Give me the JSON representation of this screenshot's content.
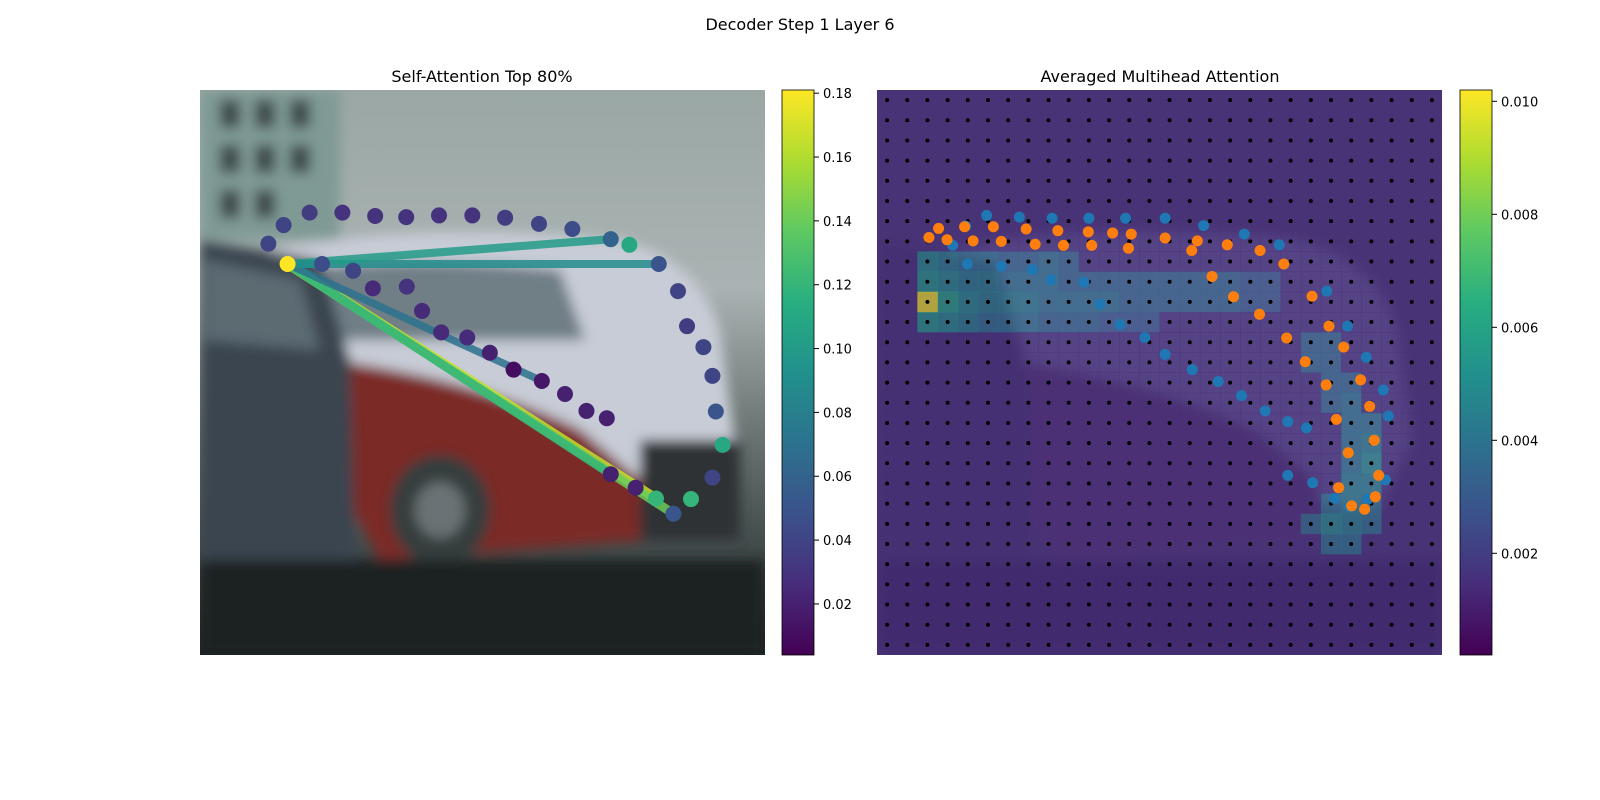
{
  "figure": {
    "suptitle": "Decoder Step 1 Layer 6"
  },
  "chart_data": [
    {
      "type": "scatter",
      "title": "Self-Attention Top 80%",
      "background": "blurred photo of parked cars",
      "colormap": "viridis",
      "colorbar": {
        "min": 0.004,
        "max": 0.181,
        "ticks": [
          0.02,
          0.04,
          0.06,
          0.08,
          0.1,
          0.12,
          0.14,
          0.16,
          0.18
        ],
        "tick_labels": [
          "0.02",
          "0.04",
          "0.06",
          "0.08",
          "0.10",
          "0.12",
          "0.14",
          "0.16",
          "0.18"
        ]
      },
      "query_index": 2,
      "x_range": [
        0,
        1
      ],
      "y_range": [
        0,
        1
      ],
      "points": [
        {
          "x": 0.121,
          "y": 0.728,
          "v": 0.04
        },
        {
          "x": 0.148,
          "y": 0.761,
          "v": 0.04
        },
        {
          "x": 0.155,
          "y": 0.692,
          "v": 0.181
        },
        {
          "x": 0.194,
          "y": 0.783,
          "v": 0.035
        },
        {
          "x": 0.216,
          "y": 0.692,
          "v": 0.045
        },
        {
          "x": 0.252,
          "y": 0.783,
          "v": 0.03
        },
        {
          "x": 0.271,
          "y": 0.68,
          "v": 0.04
        },
        {
          "x": 0.306,
          "y": 0.649,
          "v": 0.025
        },
        {
          "x": 0.31,
          "y": 0.777,
          "v": 0.03
        },
        {
          "x": 0.365,
          "y": 0.775,
          "v": 0.03
        },
        {
          "x": 0.366,
          "y": 0.652,
          "v": 0.03
        },
        {
          "x": 0.393,
          "y": 0.609,
          "v": 0.025
        },
        {
          "x": 0.423,
          "y": 0.778,
          "v": 0.03
        },
        {
          "x": 0.427,
          "y": 0.571,
          "v": 0.025
        },
        {
          "x": 0.473,
          "y": 0.562,
          "v": 0.025
        },
        {
          "x": 0.482,
          "y": 0.778,
          "v": 0.03
        },
        {
          "x": 0.513,
          "y": 0.535,
          "v": 0.02
        },
        {
          "x": 0.54,
          "y": 0.774,
          "v": 0.035
        },
        {
          "x": 0.555,
          "y": 0.505,
          "v": 0.01
        },
        {
          "x": 0.605,
          "y": 0.485,
          "v": 0.015
        },
        {
          "x": 0.6,
          "y": 0.763,
          "v": 0.04
        },
        {
          "x": 0.646,
          "y": 0.462,
          "v": 0.02
        },
        {
          "x": 0.659,
          "y": 0.754,
          "v": 0.045
        },
        {
          "x": 0.684,
          "y": 0.432,
          "v": 0.02
        },
        {
          "x": 0.72,
          "y": 0.419,
          "v": 0.02
        },
        {
          "x": 0.727,
          "y": 0.736,
          "v": 0.06
        },
        {
          "x": 0.76,
          "y": 0.726,
          "v": 0.11
        },
        {
          "x": 0.727,
          "y": 0.32,
          "v": 0.02
        },
        {
          "x": 0.771,
          "y": 0.296,
          "v": 0.02
        },
        {
          "x": 0.807,
          "y": 0.277,
          "v": 0.12
        },
        {
          "x": 0.812,
          "y": 0.692,
          "v": 0.05
        },
        {
          "x": 0.838,
          "y": 0.25,
          "v": 0.05
        },
        {
          "x": 0.869,
          "y": 0.276,
          "v": 0.12
        },
        {
          "x": 0.846,
          "y": 0.644,
          "v": 0.04
        },
        {
          "x": 0.862,
          "y": 0.582,
          "v": 0.035
        },
        {
          "x": 0.891,
          "y": 0.545,
          "v": 0.04
        },
        {
          "x": 0.907,
          "y": 0.494,
          "v": 0.04
        },
        {
          "x": 0.913,
          "y": 0.431,
          "v": 0.05
        },
        {
          "x": 0.925,
          "y": 0.372,
          "v": 0.11
        },
        {
          "x": 0.907,
          "y": 0.314,
          "v": 0.04
        }
      ],
      "attention_links": [
        {
          "to": 29,
          "v": 0.165
        },
        {
          "to": 31,
          "v": 0.14
        },
        {
          "to": 27,
          "v": 0.12
        },
        {
          "to": 30,
          "v": 0.09
        },
        {
          "to": 19,
          "v": 0.07
        },
        {
          "to": 25,
          "v": 0.1
        },
        {
          "to": 4,
          "v": 0.09
        }
      ]
    },
    {
      "type": "heatmap",
      "title": "Averaged Multihead Attention",
      "background": "blurred photo of parked cars with attention heatmap overlay",
      "colormap": "viridis",
      "colorbar": {
        "min": 0.0002,
        "max": 0.0102,
        "ticks": [
          0.002,
          0.004,
          0.006,
          0.008,
          0.01
        ],
        "tick_labels": [
          "0.002",
          "0.004",
          "0.006",
          "0.008",
          "0.010"
        ]
      },
      "grid": {
        "rows": 28,
        "cols": 28,
        "default_value": 0.0015
      },
      "high_cells": [
        {
          "r": 8,
          "c": 2,
          "v": 0.005
        },
        {
          "r": 8,
          "c": 3,
          "v": 0.0045
        },
        {
          "r": 8,
          "c": 4,
          "v": 0.004
        },
        {
          "r": 8,
          "c": 5,
          "v": 0.004
        },
        {
          "r": 8,
          "c": 6,
          "v": 0.0035
        },
        {
          "r": 8,
          "c": 7,
          "v": 0.0035
        },
        {
          "r": 8,
          "c": 8,
          "v": 0.004
        },
        {
          "r": 8,
          "c": 9,
          "v": 0.0035
        },
        {
          "r": 9,
          "c": 2,
          "v": 0.0055
        },
        {
          "r": 9,
          "c": 3,
          "v": 0.005
        },
        {
          "r": 9,
          "c": 4,
          "v": 0.0045
        },
        {
          "r": 9,
          "c": 5,
          "v": 0.0045
        },
        {
          "r": 9,
          "c": 6,
          "v": 0.004
        },
        {
          "r": 9,
          "c": 7,
          "v": 0.004
        },
        {
          "r": 9,
          "c": 8,
          "v": 0.004
        },
        {
          "r": 9,
          "c": 9,
          "v": 0.0035
        },
        {
          "r": 9,
          "c": 10,
          "v": 0.0035
        },
        {
          "r": 9,
          "c": 11,
          "v": 0.0035
        },
        {
          "r": 9,
          "c": 12,
          "v": 0.0035
        },
        {
          "r": 9,
          "c": 13,
          "v": 0.0035
        },
        {
          "r": 9,
          "c": 14,
          "v": 0.0035
        },
        {
          "r": 9,
          "c": 15,
          "v": 0.0035
        },
        {
          "r": 9,
          "c": 16,
          "v": 0.0035
        },
        {
          "r": 9,
          "c": 17,
          "v": 0.0035
        },
        {
          "r": 9,
          "c": 18,
          "v": 0.003
        },
        {
          "r": 9,
          "c": 19,
          "v": 0.003
        },
        {
          "r": 10,
          "c": 2,
          "v": 0.0101
        },
        {
          "r": 10,
          "c": 3,
          "v": 0.006
        },
        {
          "r": 10,
          "c": 4,
          "v": 0.005
        },
        {
          "r": 10,
          "c": 5,
          "v": 0.0045
        },
        {
          "r": 10,
          "c": 6,
          "v": 0.0045
        },
        {
          "r": 10,
          "c": 7,
          "v": 0.0045
        },
        {
          "r": 10,
          "c": 8,
          "v": 0.004
        },
        {
          "r": 10,
          "c": 9,
          "v": 0.004
        },
        {
          "r": 10,
          "c": 10,
          "v": 0.004
        },
        {
          "r": 10,
          "c": 11,
          "v": 0.004
        },
        {
          "r": 10,
          "c": 12,
          "v": 0.0035
        },
        {
          "r": 10,
          "c": 13,
          "v": 0.0035
        },
        {
          "r": 10,
          "c": 14,
          "v": 0.0035
        },
        {
          "r": 10,
          "c": 15,
          "v": 0.0035
        },
        {
          "r": 10,
          "c": 16,
          "v": 0.0035
        },
        {
          "r": 10,
          "c": 17,
          "v": 0.0035
        },
        {
          "r": 10,
          "c": 18,
          "v": 0.003
        },
        {
          "r": 10,
          "c": 19,
          "v": 0.003
        },
        {
          "r": 11,
          "c": 2,
          "v": 0.0055
        },
        {
          "r": 11,
          "c": 3,
          "v": 0.005
        },
        {
          "r": 11,
          "c": 4,
          "v": 0.0045
        },
        {
          "r": 11,
          "c": 5,
          "v": 0.004
        },
        {
          "r": 11,
          "c": 6,
          "v": 0.004
        },
        {
          "r": 11,
          "c": 7,
          "v": 0.004
        },
        {
          "r": 11,
          "c": 8,
          "v": 0.0035
        },
        {
          "r": 11,
          "c": 9,
          "v": 0.0035
        },
        {
          "r": 11,
          "c": 10,
          "v": 0.0035
        },
        {
          "r": 11,
          "c": 11,
          "v": 0.003
        },
        {
          "r": 11,
          "c": 12,
          "v": 0.003
        },
        {
          "r": 11,
          "c": 13,
          "v": 0.003
        },
        {
          "r": 12,
          "c": 21,
          "v": 0.0035
        },
        {
          "r": 12,
          "c": 22,
          "v": 0.0035
        },
        {
          "r": 13,
          "c": 21,
          "v": 0.0035
        },
        {
          "r": 13,
          "c": 22,
          "v": 0.0035
        },
        {
          "r": 14,
          "c": 22,
          "v": 0.0035
        },
        {
          "r": 14,
          "c": 23,
          "v": 0.0035
        },
        {
          "r": 15,
          "c": 22,
          "v": 0.0035
        },
        {
          "r": 15,
          "c": 23,
          "v": 0.004
        },
        {
          "r": 16,
          "c": 23,
          "v": 0.004
        },
        {
          "r": 16,
          "c": 24,
          "v": 0.004
        },
        {
          "r": 17,
          "c": 23,
          "v": 0.004
        },
        {
          "r": 17,
          "c": 24,
          "v": 0.0045
        },
        {
          "r": 18,
          "c": 23,
          "v": 0.004
        },
        {
          "r": 18,
          "c": 24,
          "v": 0.005
        },
        {
          "r": 19,
          "c": 23,
          "v": 0.0045
        },
        {
          "r": 19,
          "c": 24,
          "v": 0.0045
        },
        {
          "r": 20,
          "c": 22,
          "v": 0.004
        },
        {
          "r": 20,
          "c": 23,
          "v": 0.0045
        },
        {
          "r": 20,
          "c": 24,
          "v": 0.004
        },
        {
          "r": 21,
          "c": 21,
          "v": 0.004
        },
        {
          "r": 21,
          "c": 22,
          "v": 0.005
        },
        {
          "r": 21,
          "c": 23,
          "v": 0.0045
        },
        {
          "r": 21,
          "c": 24,
          "v": 0.004
        },
        {
          "r": 22,
          "c": 22,
          "v": 0.004
        },
        {
          "r": 22,
          "c": 23,
          "v": 0.004
        }
      ],
      "series": [
        {
          "name": "blue",
          "color": "#1f77b4",
          "points": [
            {
              "x": 0.134,
              "y": 0.725
            },
            {
              "x": 0.157,
              "y": 0.759
            },
            {
              "x": 0.194,
              "y": 0.778
            },
            {
              "x": 0.252,
              "y": 0.775
            },
            {
              "x": 0.31,
              "y": 0.773
            },
            {
              "x": 0.375,
              "y": 0.773
            },
            {
              "x": 0.44,
              "y": 0.773
            },
            {
              "x": 0.51,
              "y": 0.773
            },
            {
              "x": 0.578,
              "y": 0.76
            },
            {
              "x": 0.65,
              "y": 0.745
            },
            {
              "x": 0.712,
              "y": 0.726
            },
            {
              "x": 0.796,
              "y": 0.644
            },
            {
              "x": 0.833,
              "y": 0.582
            },
            {
              "x": 0.866,
              "y": 0.527
            },
            {
              "x": 0.896,
              "y": 0.469
            },
            {
              "x": 0.905,
              "y": 0.423
            },
            {
              "x": 0.16,
              "y": 0.692
            },
            {
              "x": 0.22,
              "y": 0.688
            },
            {
              "x": 0.275,
              "y": 0.682
            },
            {
              "x": 0.308,
              "y": 0.664
            },
            {
              "x": 0.366,
              "y": 0.66
            },
            {
              "x": 0.395,
              "y": 0.621
            },
            {
              "x": 0.43,
              "y": 0.585
            },
            {
              "x": 0.474,
              "y": 0.562
            },
            {
              "x": 0.51,
              "y": 0.532
            },
            {
              "x": 0.558,
              "y": 0.505
            },
            {
              "x": 0.604,
              "y": 0.484
            },
            {
              "x": 0.645,
              "y": 0.459
            },
            {
              "x": 0.687,
              "y": 0.432
            },
            {
              "x": 0.727,
              "y": 0.413
            },
            {
              "x": 0.76,
              "y": 0.402
            },
            {
              "x": 0.727,
              "y": 0.318
            },
            {
              "x": 0.771,
              "y": 0.305
            },
            {
              "x": 0.81,
              "y": 0.277
            },
            {
              "x": 0.836,
              "y": 0.262
            },
            {
              "x": 0.869,
              "y": 0.276
            },
            {
              "x": 0.9,
              "y": 0.31
            }
          ]
        },
        {
          "name": "orange",
          "color": "#ff7f0e",
          "points": [
            {
              "x": 0.092,
              "y": 0.739
            },
            {
              "x": 0.109,
              "y": 0.755
            },
            {
              "x": 0.155,
              "y": 0.758
            },
            {
              "x": 0.206,
              "y": 0.758
            },
            {
              "x": 0.264,
              "y": 0.754
            },
            {
              "x": 0.32,
              "y": 0.751
            },
            {
              "x": 0.374,
              "y": 0.749
            },
            {
              "x": 0.417,
              "y": 0.747
            },
            {
              "x": 0.45,
              "y": 0.745
            },
            {
              "x": 0.124,
              "y": 0.735
            },
            {
              "x": 0.17,
              "y": 0.733
            },
            {
              "x": 0.22,
              "y": 0.732
            },
            {
              "x": 0.28,
              "y": 0.727
            },
            {
              "x": 0.33,
              "y": 0.725
            },
            {
              "x": 0.38,
              "y": 0.725
            },
            {
              "x": 0.445,
              "y": 0.72
            },
            {
              "x": 0.51,
              "y": 0.738
            },
            {
              "x": 0.567,
              "y": 0.733
            },
            {
              "x": 0.62,
              "y": 0.726
            },
            {
              "x": 0.678,
              "y": 0.716
            },
            {
              "x": 0.72,
              "y": 0.692
            },
            {
              "x": 0.77,
              "y": 0.635
            },
            {
              "x": 0.8,
              "y": 0.582
            },
            {
              "x": 0.826,
              "y": 0.545
            },
            {
              "x": 0.856,
              "y": 0.487
            },
            {
              "x": 0.872,
              "y": 0.44
            },
            {
              "x": 0.88,
              "y": 0.38
            },
            {
              "x": 0.888,
              "y": 0.318
            },
            {
              "x": 0.882,
              "y": 0.28
            },
            {
              "x": 0.863,
              "y": 0.258
            },
            {
              "x": 0.84,
              "y": 0.264
            },
            {
              "x": 0.817,
              "y": 0.296
            },
            {
              "x": 0.834,
              "y": 0.358
            },
            {
              "x": 0.813,
              "y": 0.417
            },
            {
              "x": 0.795,
              "y": 0.478
            },
            {
              "x": 0.758,
              "y": 0.519
            },
            {
              "x": 0.725,
              "y": 0.561
            },
            {
              "x": 0.677,
              "y": 0.603
            },
            {
              "x": 0.631,
              "y": 0.634
            },
            {
              "x": 0.593,
              "y": 0.67
            },
            {
              "x": 0.557,
              "y": 0.716
            }
          ]
        }
      ]
    }
  ]
}
